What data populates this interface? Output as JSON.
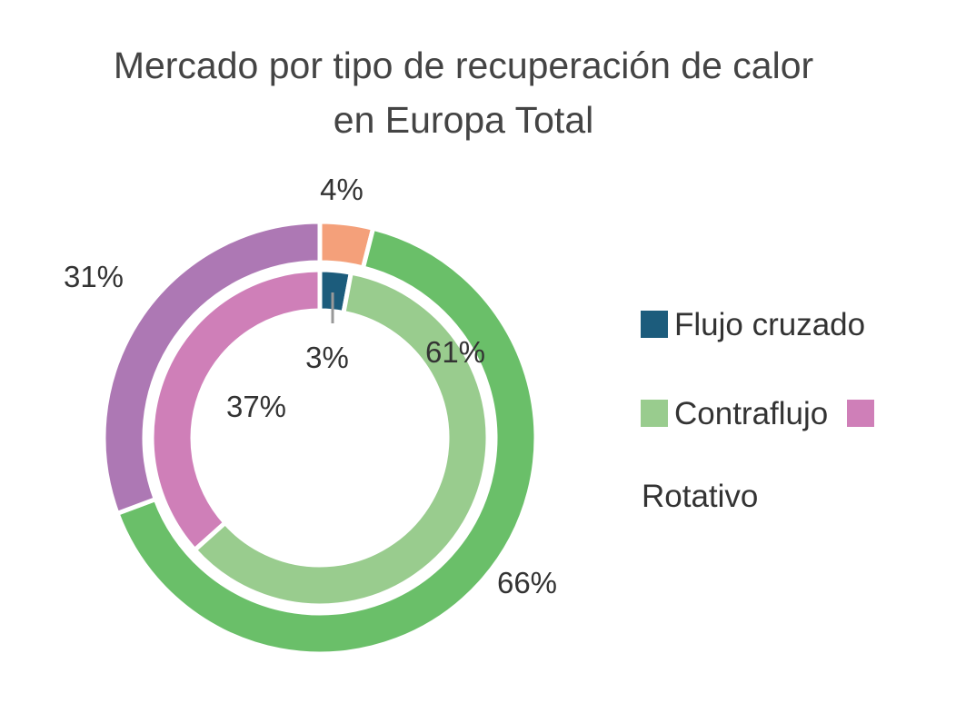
{
  "chart_data": {
    "type": "pie",
    "title": [
      "Mercado por tipo de recuperación de calor",
      "en Europa Total"
    ],
    "legend_position": "right",
    "categories": [
      "Flujo cruzado",
      "Contraflujo",
      "Rotativo"
    ],
    "series": [
      {
        "values": [
          4,
          66,
          31
        ],
        "colors": [
          "#f4a07a",
          "#6abf69",
          "#ad78b4"
        ]
      },
      {
        "values": [
          3,
          61,
          37
        ],
        "colors": [
          "#1c5c7c",
          "#99cc8e",
          "#cf7fb8"
        ]
      }
    ],
    "labels_outer": [
      "4%",
      "66%",
      "31%"
    ],
    "labels_inner": [
      "3%",
      "61%",
      "37%"
    ],
    "legend": [
      {
        "label": "Flujo cruzado",
        "color": "#1c5c7c"
      },
      {
        "label": "Contraflujo",
        "color": "#99cc8e"
      },
      {
        "label": "Rotativo",
        "color": "#cf7fb8"
      }
    ]
  }
}
